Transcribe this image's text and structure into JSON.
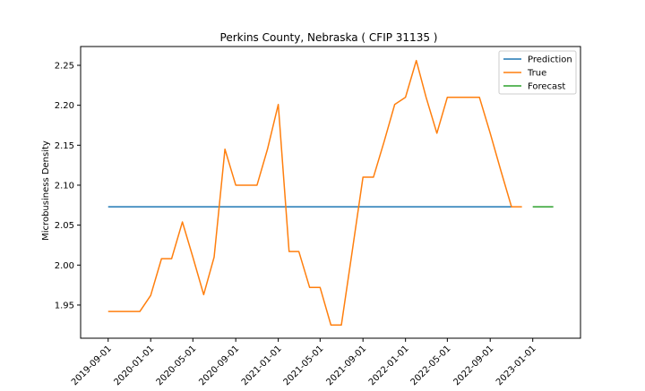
{
  "chart_data": {
    "type": "line",
    "title": "Perkins County, Nebraska ( CFIP 31135 )",
    "xlabel": "",
    "ylabel": "Microbusiness Density",
    "x_ticks": [
      "2019-09-01",
      "2020-01-01",
      "2020-05-01",
      "2020-09-01",
      "2021-01-01",
      "2021-05-01",
      "2021-09-01",
      "2022-01-01",
      "2022-05-01",
      "2022-09-01",
      "2023-01-01"
    ],
    "y_ticks": [
      "1.95",
      "2.00",
      "2.05",
      "2.10",
      "2.15",
      "2.20",
      "2.25"
    ],
    "xlim": [
      "2019-06-14",
      "2023-05-18"
    ],
    "ylim": [
      1.9085,
      2.2735
    ],
    "legend_position": "top-right",
    "grid": false,
    "series": [
      {
        "name": "Prediction",
        "color": "#1f77b4",
        "points": [
          [
            "2019-09-01",
            2.073
          ],
          [
            "2022-11-01",
            2.073
          ]
        ]
      },
      {
        "name": "True",
        "color": "#ff7f0e",
        "points": [
          [
            "2019-09-01",
            1.942
          ],
          [
            "2019-10-01",
            1.942
          ],
          [
            "2019-11-01",
            1.942
          ],
          [
            "2019-12-01",
            1.942
          ],
          [
            "2020-01-01",
            1.962
          ],
          [
            "2020-02-01",
            2.008
          ],
          [
            "2020-03-01",
            2.008
          ],
          [
            "2020-04-01",
            2.054
          ],
          [
            "2020-05-01",
            2.01
          ],
          [
            "2020-06-01",
            1.963
          ],
          [
            "2020-07-01",
            2.01
          ],
          [
            "2020-08-01",
            2.145
          ],
          [
            "2020-09-01",
            2.1
          ],
          [
            "2020-10-01",
            2.1
          ],
          [
            "2020-11-01",
            2.1
          ],
          [
            "2020-12-01",
            2.145
          ],
          [
            "2021-01-01",
            2.201
          ],
          [
            "2021-02-01",
            2.017
          ],
          [
            "2021-03-01",
            2.017
          ],
          [
            "2021-04-01",
            1.972
          ],
          [
            "2021-05-01",
            1.972
          ],
          [
            "2021-06-01",
            1.925
          ],
          [
            "2021-07-01",
            1.925
          ],
          [
            "2021-08-01",
            2.017
          ],
          [
            "2021-09-01",
            2.11
          ],
          [
            "2021-10-01",
            2.11
          ],
          [
            "2021-11-01",
            2.155
          ],
          [
            "2021-12-01",
            2.201
          ],
          [
            "2022-01-01",
            2.21
          ],
          [
            "2022-02-01",
            2.256
          ],
          [
            "2022-03-01",
            2.21
          ],
          [
            "2022-04-01",
            2.165
          ],
          [
            "2022-05-01",
            2.21
          ],
          [
            "2022-06-01",
            2.21
          ],
          [
            "2022-07-01",
            2.21
          ],
          [
            "2022-08-01",
            2.21
          ],
          [
            "2022-09-01",
            2.165
          ],
          [
            "2022-10-01",
            2.119
          ],
          [
            "2022-11-01",
            2.073
          ],
          [
            "2022-12-01",
            2.073
          ]
        ]
      },
      {
        "name": "Forecast",
        "color": "#2ca02c",
        "points": [
          [
            "2023-01-01",
            2.073
          ],
          [
            "2023-03-01",
            2.073
          ]
        ]
      }
    ]
  }
}
